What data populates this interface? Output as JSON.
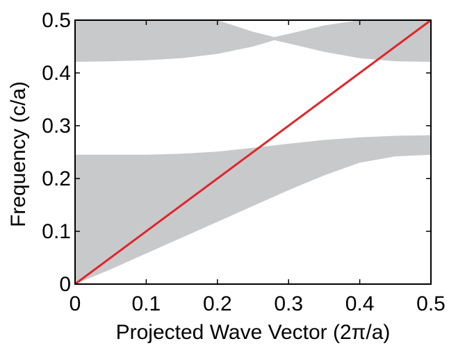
{
  "chart_data": {
    "type": "area",
    "title": "",
    "xlabel": "Projected Wave Vector (2π/a)",
    "ylabel": "Frequency (c/a)",
    "xlim": [
      0,
      0.5
    ],
    "ylim": [
      0,
      0.5
    ],
    "xticks": [
      "0",
      "0.1",
      "0.2",
      "0.3",
      "0.4",
      "0.5"
    ],
    "yticks": [
      "0",
      "0.1",
      "0.2",
      "0.3",
      "0.4",
      "0.5"
    ],
    "grid": false,
    "legend": "none",
    "colors": {
      "band": "#c8c9cb",
      "light_line": "#e0252b",
      "axis": "#000000",
      "background": "#ffffff"
    },
    "bands": [
      {
        "lower": {
          "x": [
            0,
            0.05,
            0.1,
            0.15,
            0.2,
            0.25,
            0.3,
            0.35,
            0.4,
            0.45,
            0.5
          ],
          "y": [
            0,
            0.028,
            0.058,
            0.088,
            0.118,
            0.148,
            0.178,
            0.206,
            0.23,
            0.242,
            0.245
          ]
        },
        "upper": {
          "x": [
            0,
            0.05,
            0.1,
            0.15,
            0.2,
            0.25,
            0.3,
            0.35,
            0.4,
            0.45,
            0.5
          ],
          "y": [
            0.245,
            0.245,
            0.245,
            0.247,
            0.251,
            0.258,
            0.266,
            0.273,
            0.278,
            0.281,
            0.282
          ]
        }
      },
      {
        "lower": {
          "x": [
            0,
            0.05,
            0.1,
            0.15,
            0.2,
            0.25,
            0.28,
            0.3,
            0.35,
            0.4,
            0.45,
            0.5
          ],
          "y": [
            0.421,
            0.422,
            0.424,
            0.428,
            0.436,
            0.45,
            0.462,
            0.456,
            0.44,
            0.428,
            0.422,
            0.421
          ]
        },
        "upper": {
          "x": [
            0,
            0.05,
            0.1,
            0.15,
            0.2,
            0.25,
            0.28,
            0.3,
            0.35,
            0.4,
            0.45,
            0.5
          ],
          "y": [
            0.5,
            0.5,
            0.5,
            0.5,
            0.5,
            0.478,
            0.468,
            0.474,
            0.49,
            0.5,
            0.5,
            0.5
          ]
        }
      }
    ],
    "light_line": {
      "x": [
        0,
        0.5
      ],
      "y": [
        0,
        0.5
      ]
    }
  }
}
